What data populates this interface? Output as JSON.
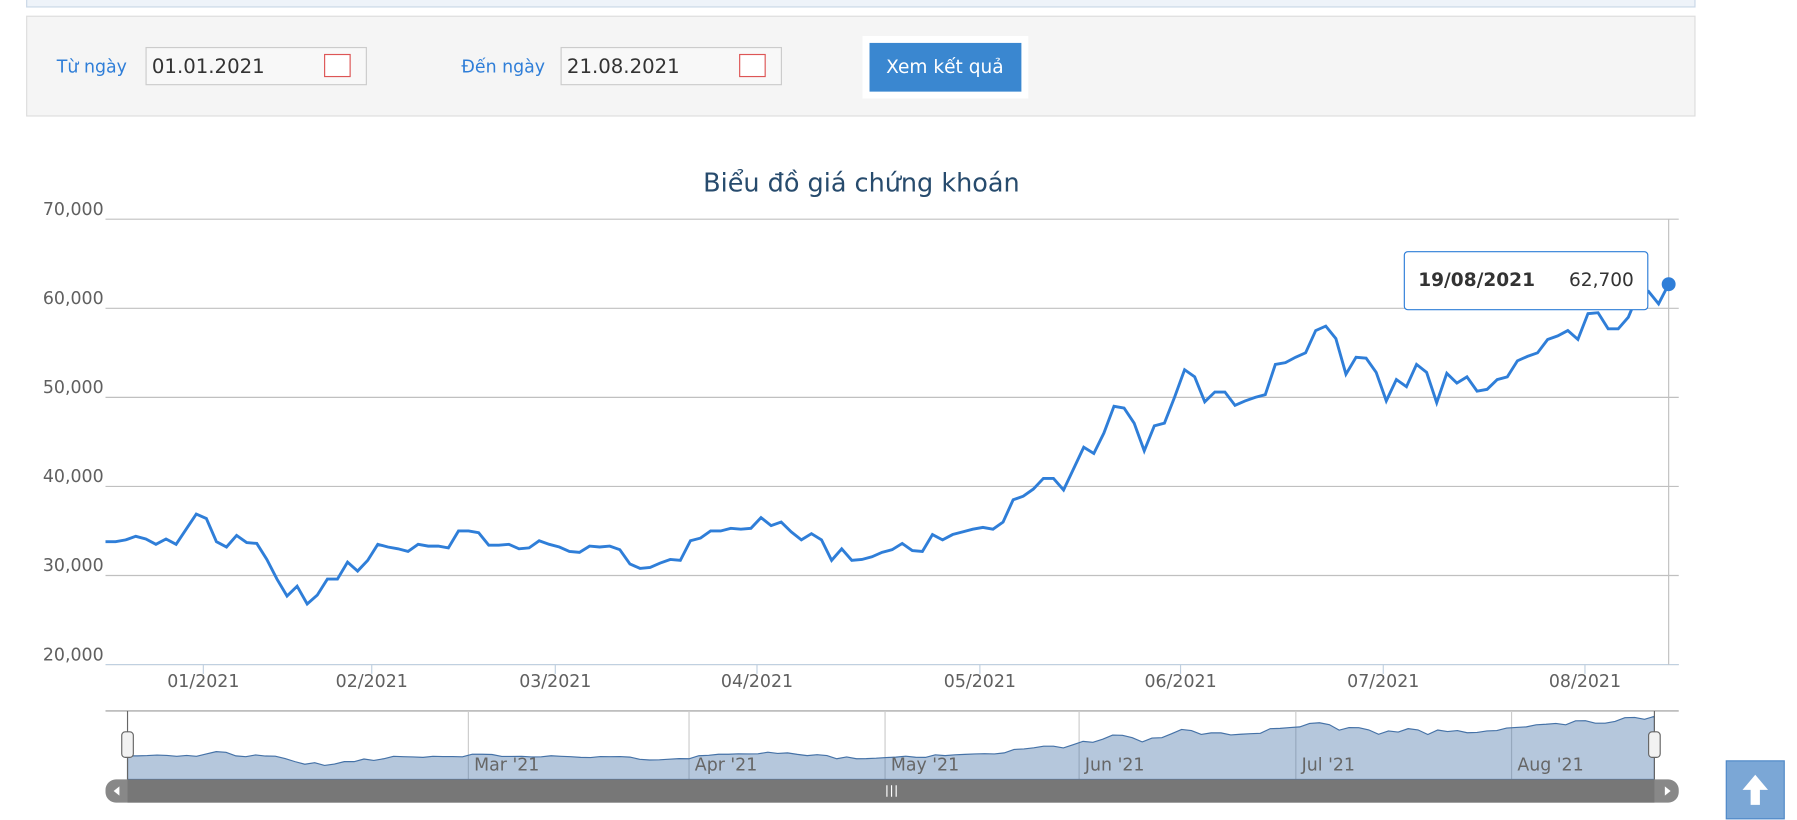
{
  "form": {
    "from_label": "Từ ngày",
    "from_value": "01.01.2021",
    "to_label": "Đến ngày",
    "to_value": "21.08.2021",
    "button": "Xem kết quả"
  },
  "chart_data": {
    "type": "line",
    "title": "Biểu đồ giá chứng khoán",
    "color": "#2f7ed8",
    "grid": true,
    "ylim": [
      20000,
      70000
    ],
    "yticks": [
      {
        "value": 20000,
        "label": "20,000"
      },
      {
        "value": 30000,
        "label": "30,000"
      },
      {
        "value": 40000,
        "label": "40,000"
      },
      {
        "value": 50000,
        "label": "50,000"
      },
      {
        "value": 60000,
        "label": "60,000"
      },
      {
        "value": 70000,
        "label": "70,000"
      }
    ],
    "xlim": [
      0,
      156
    ],
    "xticks": [
      {
        "value": 9.7,
        "label": "01/2021"
      },
      {
        "value": 26.4,
        "label": "02/2021"
      },
      {
        "value": 44.6,
        "label": "03/2021"
      },
      {
        "value": 64.6,
        "label": "04/2021"
      },
      {
        "value": 86.7,
        "label": "05/2021"
      },
      {
        "value": 106.6,
        "label": "06/2021"
      },
      {
        "value": 126.7,
        "label": "07/2021"
      },
      {
        "value": 146.7,
        "label": "08/2021"
      }
    ],
    "series": [
      {
        "values": [
          33800,
          33800,
          34000,
          34400,
          34100,
          33500,
          34100,
          33500,
          35200,
          36900,
          36400,
          33800,
          33200,
          34500,
          33700,
          33600,
          31800,
          29600,
          27700,
          28800,
          26800,
          27800,
          29600,
          29600,
          31500,
          30500,
          31700,
          33500,
          33200,
          33000,
          32700,
          33500,
          33300,
          33300,
          33100,
          35000,
          35000,
          34800,
          33400,
          33400,
          33500,
          33000,
          33100,
          33900,
          33500,
          33200,
          32700,
          32600,
          33300,
          33200,
          33300,
          32900,
          31300,
          30800,
          30900,
          31400,
          31800,
          31700,
          33900,
          34200,
          35000,
          35000,
          35300,
          35200,
          35300,
          36500,
          35600,
          36000,
          34900,
          34000,
          34700,
          34000,
          31700,
          33000,
          31700,
          31800,
          32100,
          32600,
          32900,
          33600,
          32800,
          32700,
          34600,
          34000,
          34600,
          34900,
          35200,
          35400,
          35200,
          36000,
          38500,
          38900,
          39700,
          40900,
          40900,
          39600,
          42000,
          44400,
          43700,
          46000,
          49000,
          48800,
          47100,
          44000,
          46800,
          47100,
          50000,
          53100,
          52300,
          49500,
          50600,
          50600,
          49100,
          49600,
          50000,
          50300,
          53700,
          53900,
          54500,
          55000,
          57500,
          58000,
          56600,
          52600,
          54500,
          54400,
          52800,
          49600,
          52000,
          51200,
          53700,
          52800,
          49400,
          52700,
          51600,
          52300,
          50700,
          50900,
          52000,
          52300,
          54100,
          54600,
          55000,
          56500,
          56900,
          57500,
          56500,
          59400,
          59500,
          57700,
          57700,
          59000,
          61700,
          61900,
          60500,
          62700
        ]
      }
    ],
    "tooltip": {
      "date": "19/08/2021",
      "value_label": "62,700"
    },
    "navigator": {
      "xticks": [
        {
          "value": 34.6,
          "label": "Mar '21"
        },
        {
          "value": 57.0,
          "label": "Apr '21"
        },
        {
          "value": 76.9,
          "label": "May '21"
        },
        {
          "value": 96.6,
          "label": "Jun '21"
        },
        {
          "value": 118.6,
          "label": "Jul '21"
        },
        {
          "value": 140.5,
          "label": "Aug '21"
        }
      ]
    }
  }
}
